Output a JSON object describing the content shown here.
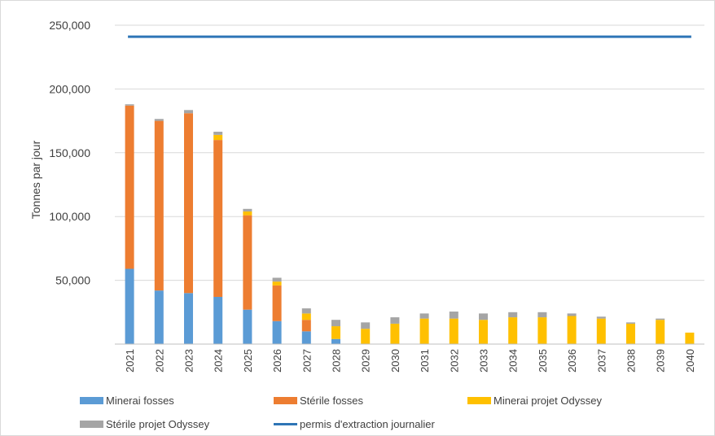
{
  "chart_data": {
    "type": "bar",
    "stacked": true,
    "title": "",
    "xlabel": "",
    "ylabel": "Tonnes par jour",
    "ylim": [
      0,
      250000
    ],
    "yticks": [
      "50,000",
      "100,000",
      "150,000",
      "200,000",
      "250,000"
    ],
    "ytick_values": [
      50000,
      100000,
      150000,
      200000,
      250000
    ],
    "grid": true,
    "legend_position": "bottom",
    "categories": [
      "2021",
      "2022",
      "2023",
      "2024",
      "2025",
      "2026",
      "2027",
      "2028",
      "2029",
      "2030",
      "2031",
      "2032",
      "2033",
      "2034",
      "2035",
      "2036",
      "2037",
      "2038",
      "2039",
      "2040"
    ],
    "series": [
      {
        "name": "Minerai fosses",
        "color": "#5b9bd5",
        "values": [
          59000,
          42000,
          40000,
          37000,
          27000,
          18000,
          10000,
          4000,
          0,
          0,
          0,
          0,
          0,
          0,
          0,
          0,
          0,
          0,
          0,
          0
        ]
      },
      {
        "name": "Stérile fosses",
        "color": "#ed7d31",
        "values": [
          128000,
          133000,
          141000,
          123000,
          74000,
          28000,
          9000,
          0,
          0,
          0,
          0,
          0,
          0,
          0,
          0,
          0,
          0,
          0,
          0,
          0
        ]
      },
      {
        "name": "Minerai projet Odyssey",
        "color": "#ffc000",
        "values": [
          0,
          0,
          0,
          4000,
          3000,
          3000,
          5000,
          10000,
          12000,
          16000,
          20000,
          20000,
          19000,
          21000,
          21000,
          22000,
          20000,
          16000,
          19000,
          9000
        ]
      },
      {
        "name": "Stérile projet Odyssey",
        "color": "#a5a5a5",
        "values": [
          1000,
          1500,
          2500,
          2500,
          2000,
          3000,
          4000,
          5000,
          5000,
          5000,
          4000,
          5500,
          5000,
          4000,
          4000,
          2000,
          1500,
          1000,
          1000,
          0
        ]
      }
    ],
    "line": {
      "name": "permis d'extraction journalier",
      "color": "#2e75b6",
      "value": 241000
    }
  }
}
